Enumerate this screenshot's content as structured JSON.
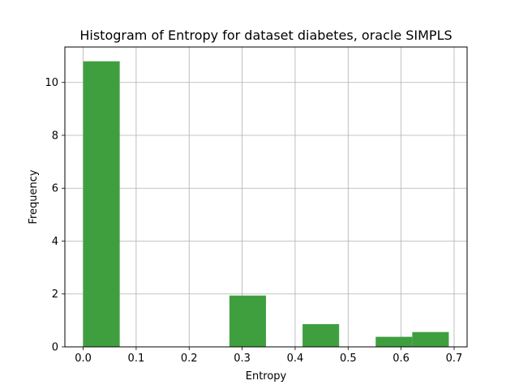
{
  "chart_data": {
    "type": "bar",
    "title": "Histogram of Entropy for dataset diabetes, oracle SIMPLS",
    "xlabel": "Entropy",
    "ylabel": "Frequency",
    "xlim": [
      -0.0345,
      0.7245
    ],
    "ylim": [
      0,
      11.34
    ],
    "xticks": [
      0.0,
      0.1,
      0.2,
      0.3,
      0.4,
      0.5,
      0.6,
      0.7
    ],
    "xtick_labels": [
      "0.0",
      "0.1",
      "0.2",
      "0.3",
      "0.4",
      "0.5",
      "0.6",
      "0.7"
    ],
    "yticks": [
      0,
      2,
      4,
      6,
      8,
      10
    ],
    "ytick_labels": [
      "0",
      "2",
      "4",
      "6",
      "8",
      "10"
    ],
    "grid": true,
    "bar_color": "#3f9f3f",
    "bins": [
      {
        "start": 0.0,
        "end": 0.069,
        "value": 10.8
      },
      {
        "start": 0.069,
        "end": 0.138,
        "value": 0
      },
      {
        "start": 0.138,
        "end": 0.207,
        "value": 0
      },
      {
        "start": 0.207,
        "end": 0.276,
        "value": 0
      },
      {
        "start": 0.276,
        "end": 0.345,
        "value": 1.94
      },
      {
        "start": 0.345,
        "end": 0.414,
        "value": 0
      },
      {
        "start": 0.414,
        "end": 0.483,
        "value": 0.86
      },
      {
        "start": 0.483,
        "end": 0.552,
        "value": 0
      },
      {
        "start": 0.552,
        "end": 0.621,
        "value": 0.38
      },
      {
        "start": 0.621,
        "end": 0.69,
        "value": 0.56
      }
    ]
  }
}
